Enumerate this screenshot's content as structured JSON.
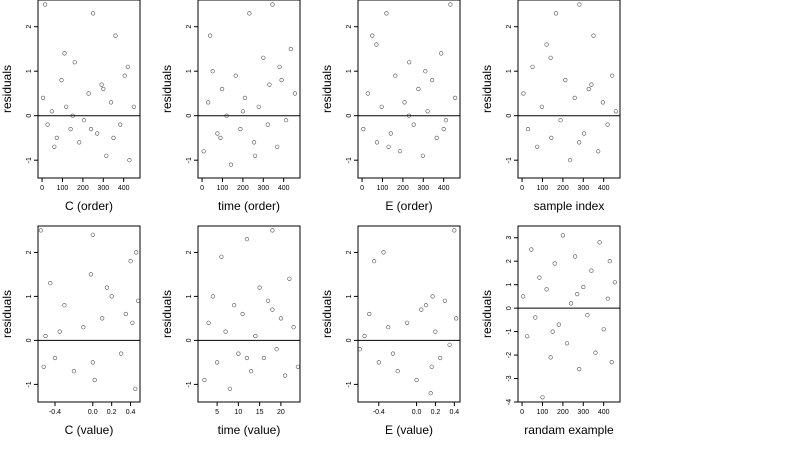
{
  "chart_data": [
    {
      "type": "scatter",
      "xlabel": "C (order)",
      "ylabel": "residuals",
      "xlim": [
        -20,
        480
      ],
      "ylim": [
        -1.4,
        2.6
      ],
      "xticks": [
        0,
        100,
        200,
        300,
        400
      ],
      "xtick_labels": [
        "0",
        "100",
        "200",
        "300",
        "400"
      ],
      "yticks": [
        -1,
        0,
        1,
        2
      ],
      "ytick_labels": [
        "-1",
        "0",
        "1",
        "2"
      ],
      "hline": 0,
      "grid": false,
      "points_x": [
        5,
        27,
        48,
        72,
        95,
        118,
        140,
        160,
        182,
        205,
        228,
        250,
        270,
        292,
        315,
        338,
        360,
        383,
        405,
        428,
        450,
        15,
        60,
        110,
        150,
        240,
        300,
        350,
        420
      ],
      "points_y": [
        0.4,
        -0.2,
        0.1,
        -0.5,
        0.8,
        0.2,
        -0.3,
        1.2,
        -0.6,
        -0.1,
        0.5,
        2.3,
        -0.4,
        0.7,
        -0.9,
        0.3,
        1.8,
        -0.2,
        0.9,
        -1.0,
        0.2,
        2.5,
        -0.7,
        1.4,
        0.0,
        -0.3,
        0.6,
        -0.5,
        1.1
      ]
    },
    {
      "type": "scatter",
      "xlabel": "time (order)",
      "ylabel": "residuals",
      "xlim": [
        -20,
        480
      ],
      "ylim": [
        -1.4,
        2.6
      ],
      "xticks": [
        0,
        100,
        200,
        300,
        400
      ],
      "xtick_labels": [
        "0",
        "100",
        "200",
        "300",
        "400"
      ],
      "yticks": [
        -1,
        0,
        1,
        2
      ],
      "ytick_labels": [
        "-1",
        "0",
        "1",
        "2"
      ],
      "hline": 0,
      "grid": false,
      "points_x": [
        8,
        30,
        52,
        75,
        98,
        120,
        142,
        165,
        188,
        210,
        232,
        255,
        278,
        300,
        322,
        345,
        368,
        390,
        412,
        435,
        455,
        40,
        90,
        200,
        260,
        330,
        380
      ],
      "points_y": [
        -0.8,
        0.3,
        1.0,
        -0.4,
        0.6,
        0.0,
        -1.1,
        0.9,
        -0.3,
        0.4,
        2.3,
        -0.6,
        0.2,
        1.3,
        -0.2,
        2.5,
        -0.7,
        0.8,
        -0.1,
        1.5,
        0.5,
        1.8,
        -0.5,
        0.1,
        -0.9,
        0.7,
        1.1
      ]
    },
    {
      "type": "scatter",
      "xlabel": "E (order)",
      "ylabel": "residuals",
      "xlim": [
        -20,
        480
      ],
      "ylim": [
        -1.4,
        2.6
      ],
      "xticks": [
        0,
        100,
        200,
        300,
        400
      ],
      "xtick_labels": [
        "0",
        "100",
        "200",
        "300",
        "400"
      ],
      "yticks": [
        -1,
        0,
        1,
        2
      ],
      "ytick_labels": [
        "-1",
        "0",
        "1",
        "2"
      ],
      "hline": 0,
      "grid": false,
      "points_x": [
        6,
        28,
        50,
        73,
        96,
        119,
        141,
        163,
        186,
        208,
        231,
        253,
        276,
        298,
        321,
        343,
        366,
        388,
        411,
        433,
        456,
        70,
        130,
        230,
        310,
        400
      ],
      "points_y": [
        -0.3,
        0.5,
        1.8,
        -0.6,
        0.2,
        2.3,
        -0.4,
        0.9,
        -0.8,
        0.3,
        1.2,
        -0.2,
        0.6,
        -0.9,
        0.1,
        0.8,
        -0.5,
        1.4,
        -0.1,
        2.5,
        0.4,
        1.6,
        -0.7,
        0.0,
        1.0,
        -0.3
      ]
    },
    {
      "type": "scatter",
      "xlabel": "sample index",
      "ylabel": "residuals",
      "xlim": [
        -20,
        480
      ],
      "ylim": [
        -1.4,
        2.6
      ],
      "xticks": [
        0,
        100,
        200,
        300,
        400
      ],
      "xtick_labels": [
        "0",
        "100",
        "200",
        "300",
        "400"
      ],
      "yticks": [
        -1,
        0,
        1,
        2
      ],
      "ytick_labels": [
        "-1",
        "0",
        "1",
        "2"
      ],
      "hline": 0,
      "grid": false,
      "points_x": [
        7,
        29,
        51,
        74,
        97,
        120,
        143,
        166,
        189,
        212,
        235,
        258,
        281,
        304,
        327,
        350,
        373,
        396,
        419,
        442,
        460,
        140,
        280,
        340
      ],
      "points_y": [
        0.5,
        -0.3,
        1.1,
        -0.7,
        0.2,
        1.6,
        -0.5,
        2.3,
        -0.1,
        0.8,
        -1.0,
        0.4,
        2.5,
        -0.4,
        0.6,
        1.8,
        -0.8,
        0.3,
        -0.2,
        0.9,
        0.1,
        1.3,
        -0.6,
        0.7
      ]
    },
    {
      "type": "scatter",
      "xlabel": "C (value)",
      "ylabel": "residuals",
      "xlim": [
        -0.58,
        0.5
      ],
      "ylim": [
        -1.4,
        2.6
      ],
      "xticks": [
        -0.4,
        0.0,
        0.2,
        0.4
      ],
      "xtick_labels": [
        "-0.4",
        "0.0",
        "0.2",
        "0.4"
      ],
      "yticks": [
        -1,
        0,
        1,
        2
      ],
      "ytick_labels": [
        "-1",
        "0",
        "1",
        "2"
      ],
      "hline": 0,
      "grid": false,
      "points_x": [
        -0.55,
        -0.5,
        -0.45,
        -0.4,
        -0.3,
        -0.2,
        -0.1,
        -0.02,
        0.0,
        0.02,
        0.1,
        0.2,
        0.3,
        0.35,
        0.4,
        0.45,
        0.48,
        -0.52,
        -0.35,
        0.0,
        0.15,
        0.42,
        0.46
      ],
      "points_y": [
        2.5,
        0.1,
        1.3,
        -0.4,
        0.8,
        -0.7,
        0.3,
        1.5,
        2.4,
        -0.9,
        0.5,
        1.0,
        -0.3,
        0.6,
        1.8,
        -1.1,
        0.9,
        -0.6,
        0.2,
        -0.5,
        1.2,
        0.4,
        2.0
      ]
    },
    {
      "type": "scatter",
      "xlabel": "time (value)",
      "ylabel": "residuals",
      "xlim": [
        0.5,
        24.5
      ],
      "ylim": [
        -1.4,
        2.6
      ],
      "xticks": [
        5,
        10,
        15,
        20
      ],
      "xtick_labels": [
        "5",
        "10",
        "15",
        "20"
      ],
      "yticks": [
        -1,
        0,
        1,
        2
      ],
      "ytick_labels": [
        "-1",
        "0",
        "1",
        "2"
      ],
      "hline": 0,
      "grid": false,
      "points_x": [
        2,
        3,
        4,
        5,
        6,
        7,
        8,
        9,
        10,
        11,
        12,
        13,
        14,
        15,
        16,
        17,
        18,
        19,
        20,
        21,
        22,
        23,
        24,
        12,
        18
      ],
      "points_y": [
        -0.9,
        0.4,
        1.0,
        -0.5,
        1.9,
        0.2,
        -1.1,
        0.8,
        -0.3,
        0.6,
        2.3,
        -0.7,
        0.1,
        1.2,
        -0.4,
        0.9,
        2.5,
        -0.2,
        0.5,
        -0.8,
        1.4,
        0.3,
        -0.6,
        -0.4,
        0.7
      ]
    },
    {
      "type": "scatter",
      "xlabel": "E (value)",
      "ylabel": "residuals",
      "xlim": [
        -0.62,
        0.46
      ],
      "ylim": [
        -1.4,
        2.6
      ],
      "xticks": [
        -0.4,
        0.0,
        0.2,
        0.4
      ],
      "xtick_labels": [
        "-0.4",
        "0.0",
        "0.2",
        "0.4"
      ],
      "yticks": [
        -1,
        0,
        1,
        2
      ],
      "ytick_labels": [
        "-1",
        "0",
        "1",
        "2"
      ],
      "hline": 0,
      "grid": false,
      "points_x": [
        -0.6,
        -0.5,
        -0.45,
        -0.4,
        -0.35,
        -0.3,
        -0.2,
        -0.1,
        0.0,
        0.1,
        0.15,
        0.17,
        0.2,
        0.25,
        0.3,
        0.35,
        0.4,
        0.42,
        -0.55,
        -0.25,
        0.05,
        0.16
      ],
      "points_y": [
        -0.2,
        0.6,
        1.8,
        -0.5,
        2.0,
        0.3,
        -0.7,
        0.4,
        -0.9,
        0.8,
        -1.2,
        1.0,
        0.2,
        -0.4,
        0.9,
        -0.1,
        2.5,
        0.5,
        0.1,
        -0.3,
        0.7,
        -0.6
      ]
    },
    {
      "type": "scatter",
      "xlabel": "randam example",
      "ylabel": "residuals",
      "xlim": [
        -20,
        480
      ],
      "ylim": [
        -4.0,
        3.5
      ],
      "xticks": [
        0,
        100,
        200,
        300,
        400
      ],
      "xtick_labels": [
        "0",
        "100",
        "200",
        "300",
        "400"
      ],
      "yticks": [
        -4,
        -3,
        -2,
        -1,
        0,
        1,
        2,
        3
      ],
      "ytick_labels": [
        "-4",
        "-3",
        "-2",
        "-1",
        "0",
        "1",
        "2",
        "3"
      ],
      "hline": 0,
      "grid": false,
      "points_x": [
        5,
        25,
        45,
        65,
        85,
        100,
        120,
        140,
        160,
        180,
        200,
        220,
        240,
        260,
        280,
        300,
        320,
        340,
        360,
        380,
        400,
        420,
        440,
        455,
        150,
        270,
        430
      ],
      "points_y": [
        0.5,
        -1.2,
        2.5,
        -0.4,
        1.3,
        -3.8,
        0.8,
        -2.1,
        1.9,
        -0.7,
        3.1,
        -1.5,
        0.2,
        2.2,
        -2.6,
        0.9,
        -0.3,
        1.6,
        -1.9,
        2.8,
        -0.9,
        0.4,
        -2.3,
        1.1,
        -1.0,
        0.6,
        2.0
      ]
    }
  ]
}
